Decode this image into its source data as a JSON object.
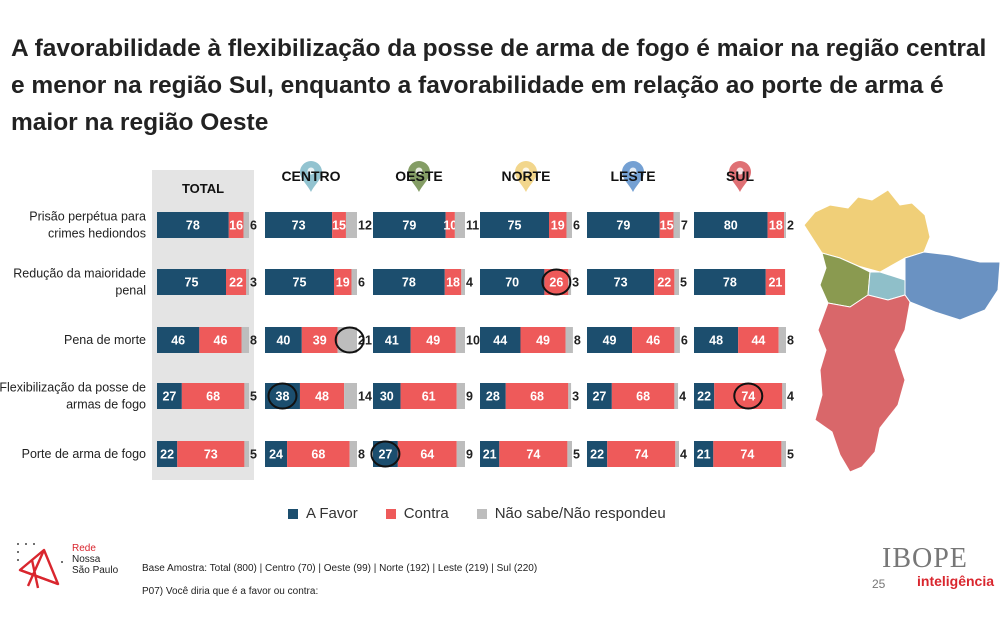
{
  "title": "A favorabilidade à flexibilização da posse de arma de fogo é maior na região central e menor na região Sul, enquanto a favorabilidade em relação ao porte de arma é maior na região Oeste",
  "colors": {
    "favor": "#1c4e6e",
    "contra": "#ee5a5a",
    "ns": "#bdbdbd",
    "total_bg": "#e4e4e4",
    "circle": "#111111"
  },
  "chart_data": {
    "type": "bar",
    "stacked": true,
    "orientation": "horizontal",
    "groups": [
      "TOTAL",
      "CENTRO",
      "OESTE",
      "NORTE",
      "LESTE",
      "SUL"
    ],
    "categories": [
      "Prisão perpétua para crimes hediondos",
      "Redução da maioridade penal",
      "Pena de morte",
      "Flexibilização da posse de armas de fogo",
      "Porte de arma de fogo"
    ],
    "category_lines": [
      [
        "Prisão perpétua para",
        "crimes hediondos"
      ],
      [
        "Redução da maioridade",
        "penal"
      ],
      [
        "Pena de morte"
      ],
      [
        "Flexibilização da posse de",
        "armas de fogo"
      ],
      [
        "Porte de arma de fogo"
      ]
    ],
    "series_names": [
      "A Favor",
      "Contra",
      "Não sabe/Não respondeu"
    ],
    "values": {
      "TOTAL": [
        [
          78,
          16,
          6
        ],
        [
          75,
          22,
          3
        ],
        [
          46,
          46,
          8
        ],
        [
          27,
          68,
          5
        ],
        [
          22,
          73,
          5
        ]
      ],
      "CENTRO": [
        [
          73,
          15,
          12
        ],
        [
          75,
          19,
          6
        ],
        [
          40,
          39,
          21
        ],
        [
          38,
          48,
          14
        ],
        [
          24,
          68,
          8
        ]
      ],
      "OESTE": [
        [
          79,
          10,
          11
        ],
        [
          78,
          18,
          4
        ],
        [
          41,
          49,
          10
        ],
        [
          30,
          61,
          9
        ],
        [
          27,
          64,
          9
        ]
      ],
      "NORTE": [
        [
          75,
          19,
          6
        ],
        [
          70,
          26,
          3
        ],
        [
          44,
          49,
          8
        ],
        [
          28,
          68,
          3
        ],
        [
          21,
          74,
          5
        ]
      ],
      "LESTE": [
        [
          79,
          15,
          7
        ],
        [
          73,
          22,
          5
        ],
        [
          49,
          46,
          6
        ],
        [
          27,
          68,
          4
        ],
        [
          22,
          74,
          4
        ]
      ],
      "SUL": [
        [
          80,
          18,
          2
        ],
        [
          78,
          21,
          null
        ],
        [
          48,
          44,
          8
        ],
        [
          22,
          74,
          4
        ],
        [
          21,
          74,
          5
        ]
      ]
    },
    "highlights": [
      {
        "group": "NORTE",
        "row": 1,
        "series": 1
      },
      {
        "group": "CENTRO",
        "row": 2,
        "series": 2
      },
      {
        "group": "CENTRO",
        "row": 3,
        "series": 0
      },
      {
        "group": "SUL",
        "row": 3,
        "series": 1
      },
      {
        "group": "OESTE",
        "row": 4,
        "series": 0
      }
    ],
    "pin_colors": {
      "CENTRO": "#7fb8c8",
      "OESTE": "#6f8c4a",
      "NORTE": "#f0cf78",
      "LESTE": "#5c8fcb",
      "SUL": "#d9575c"
    }
  },
  "legend": {
    "favor": "A Favor",
    "contra": "Contra",
    "ns": "Não sabe/Não respondeu"
  },
  "map": {
    "regions": [
      {
        "name": "NORTE",
        "color": "#f0cf78"
      },
      {
        "name": "OESTE",
        "color": "#8a9a50"
      },
      {
        "name": "CENTRO",
        "color": "#8fbfc9"
      },
      {
        "name": "LESTE",
        "color": "#6a92c2"
      },
      {
        "name": "SUL",
        "color": "#d9676a"
      }
    ]
  },
  "footer": {
    "rede_line1": "Rede",
    "rede_line2": "Nossa",
    "rede_line3": "São Paulo",
    "base": "Base Amostra: Total (800) | Centro (70) | Oeste (99) | Norte (192) | Leste (219) | Sul (220)",
    "question": "P07) Você diria que é a favor ou contra:",
    "ibope": "IBOPE",
    "inteligencia": "inteligência",
    "page": "25"
  }
}
